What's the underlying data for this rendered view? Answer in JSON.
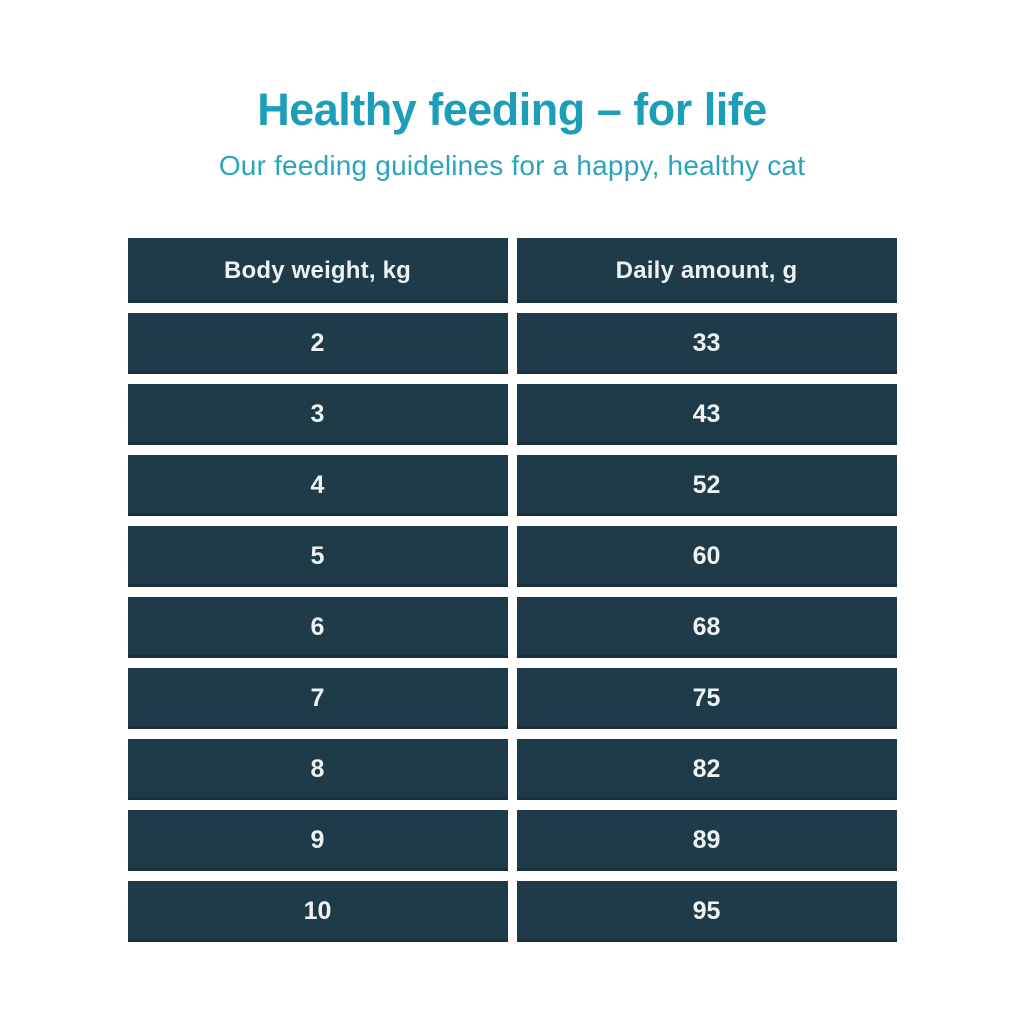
{
  "header": {
    "title": "Healthy feeding – for life",
    "subtitle": "Our feeding guidelines for a happy, healthy cat"
  },
  "colors": {
    "title_teal": "#1d9eb8",
    "subtitle_teal": "#2aa5b9",
    "cell_navy": "#1f3a48",
    "cell_text": "#edf2f4",
    "background": "#ffffff"
  },
  "table": {
    "columns": [
      "Body weight, kg",
      "Daily amount, g"
    ],
    "rows": [
      [
        "2",
        "33"
      ],
      [
        "3",
        "43"
      ],
      [
        "4",
        "52"
      ],
      [
        "5",
        "60"
      ],
      [
        "6",
        "68"
      ],
      [
        "7",
        "75"
      ],
      [
        "8",
        "82"
      ],
      [
        "9",
        "89"
      ],
      [
        "10",
        "95"
      ]
    ]
  },
  "chart_data": {
    "type": "table",
    "title": "Healthy feeding – for life",
    "subtitle": "Our feeding guidelines for a happy, healthy cat",
    "columns": [
      "Body weight, kg",
      "Daily amount, g"
    ],
    "body_weight_kg": [
      2,
      3,
      4,
      5,
      6,
      7,
      8,
      9,
      10
    ],
    "daily_amount_g": [
      33,
      43,
      52,
      60,
      68,
      75,
      82,
      89,
      95
    ]
  }
}
